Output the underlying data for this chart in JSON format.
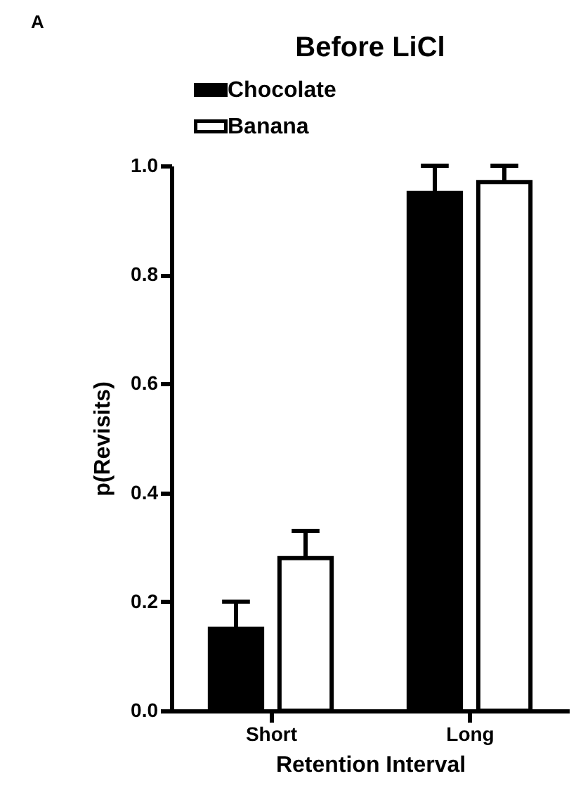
{
  "chart_data": {
    "type": "bar",
    "title": "Before LiCl",
    "xlabel": "Retention Interval",
    "ylabel": "p(Revisits)",
    "annotations": [
      "A"
    ],
    "categories": [
      "Short",
      "Long"
    ],
    "series": [
      {
        "name": "Chocolate",
        "color": "#000000",
        "values": [
          0.15,
          0.95
        ],
        "errors": [
          [
            0.15,
            0.2
          ],
          [
            0.95,
            1.0
          ]
        ]
      },
      {
        "name": "Banana",
        "color": "#ffffff",
        "values": [
          0.28,
          0.97
        ],
        "errors": [
          [
            0.28,
            0.33
          ],
          [
            0.97,
            1.0
          ]
        ]
      }
    ],
    "ylim": [
      0,
      1
    ],
    "yticks": [
      {
        "value": 0,
        "label": "0.0"
      },
      0.2,
      0.4,
      0.6,
      0.8,
      {
        "value": 1,
        "label": "1.0"
      }
    ],
    "grid": false,
    "legend": "top"
  }
}
